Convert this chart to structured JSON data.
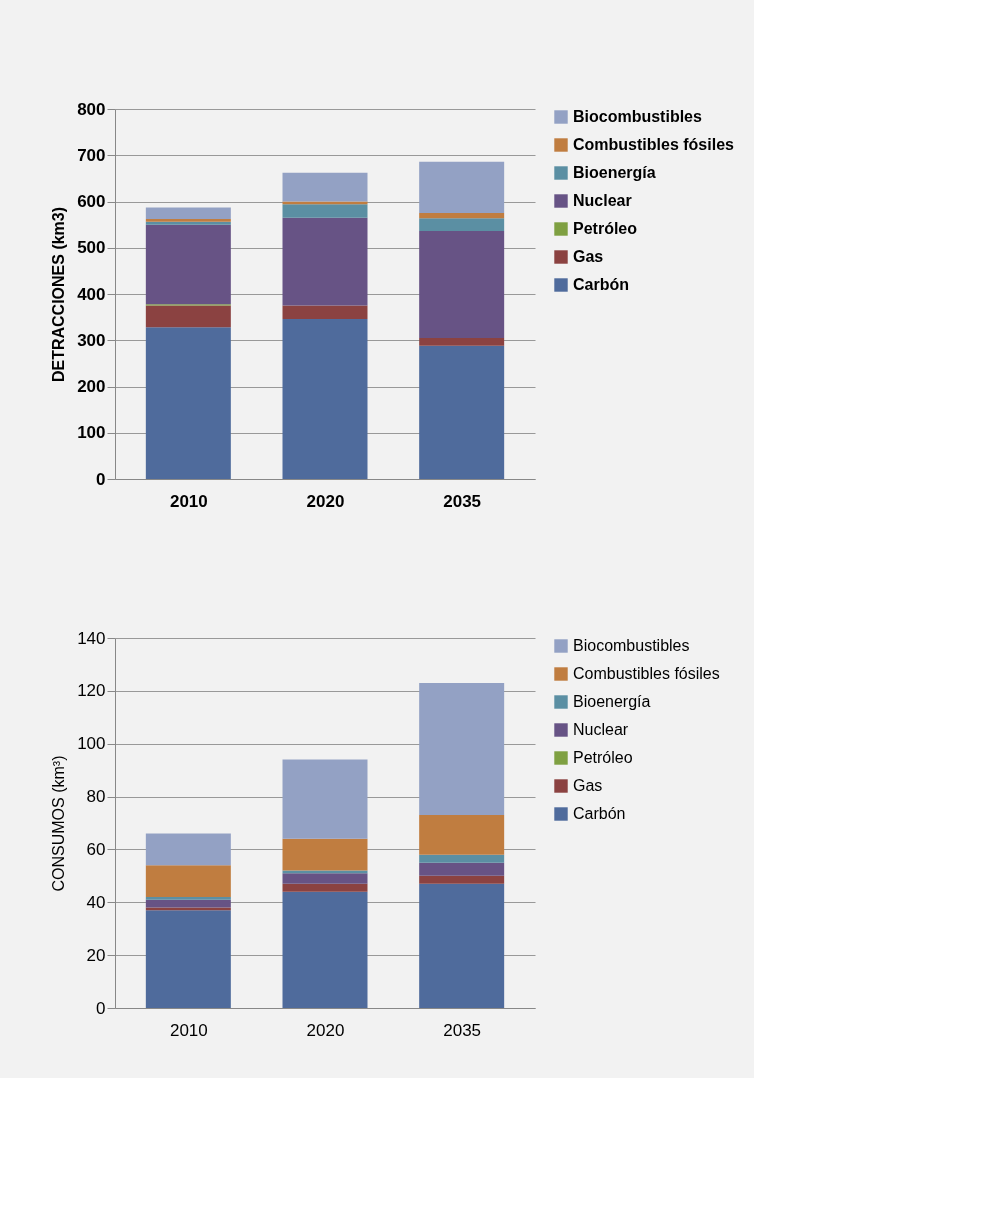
{
  "chart_data": [
    {
      "type": "bar",
      "stacked": true,
      "ylabel": "DETRACCIONES (km3)",
      "categories": [
        "2010",
        "2020",
        "2035"
      ],
      "ylim": [
        0,
        800
      ],
      "yticks": [
        0,
        100,
        200,
        300,
        400,
        500,
        600,
        700,
        800
      ],
      "grid": "y",
      "legend": "right",
      "series": [
        {
          "name": "Carbón",
          "color": "#4f6b9c",
          "values": [
            328,
            346,
            288
          ]
        },
        {
          "name": "Gas",
          "color": "#8b4241",
          "values": [
            47,
            29,
            17
          ]
        },
        {
          "name": "Petróleo",
          "color": "#7fa042",
          "values": [
            3,
            0,
            0
          ]
        },
        {
          "name": "Nuclear",
          "color": "#675385",
          "values": [
            172,
            190,
            231
          ]
        },
        {
          "name": "Bioenergía",
          "color": "#5b8fa3",
          "values": [
            6,
            29,
            28
          ]
        },
        {
          "name": "Combustibles fósiles",
          "color": "#c07d40",
          "values": [
            6,
            6,
            11
          ]
        },
        {
          "name": "Biocombustibles",
          "color": "#93a1c4",
          "values": [
            25,
            62,
            111
          ]
        }
      ]
    },
    {
      "type": "bar",
      "stacked": true,
      "ylabel": "CONSUMOS (km³)",
      "categories": [
        "2010",
        "2020",
        "2035"
      ],
      "ylim": [
        0,
        140
      ],
      "yticks": [
        0,
        20,
        40,
        60,
        80,
        100,
        120,
        140
      ],
      "grid": "y",
      "legend": "right",
      "series": [
        {
          "name": "Carbón",
          "color": "#4f6b9c",
          "values": [
            37,
            44,
            47
          ]
        },
        {
          "name": "Gas",
          "color": "#8b4241",
          "values": [
            1,
            3,
            3
          ]
        },
        {
          "name": "Petróleo",
          "color": "#7fa042",
          "values": [
            0,
            0,
            0
          ]
        },
        {
          "name": "Nuclear",
          "color": "#675385",
          "values": [
            3,
            4,
            5
          ]
        },
        {
          "name": "Bioenergía",
          "color": "#5b8fa3",
          "values": [
            1,
            1,
            3
          ]
        },
        {
          "name": "Combustibles fósiles",
          "color": "#c07d40",
          "values": [
            12,
            12,
            15
          ]
        },
        {
          "name": "Biocombustibles",
          "color": "#93a1c4",
          "values": [
            12,
            30,
            50
          ]
        }
      ]
    }
  ]
}
